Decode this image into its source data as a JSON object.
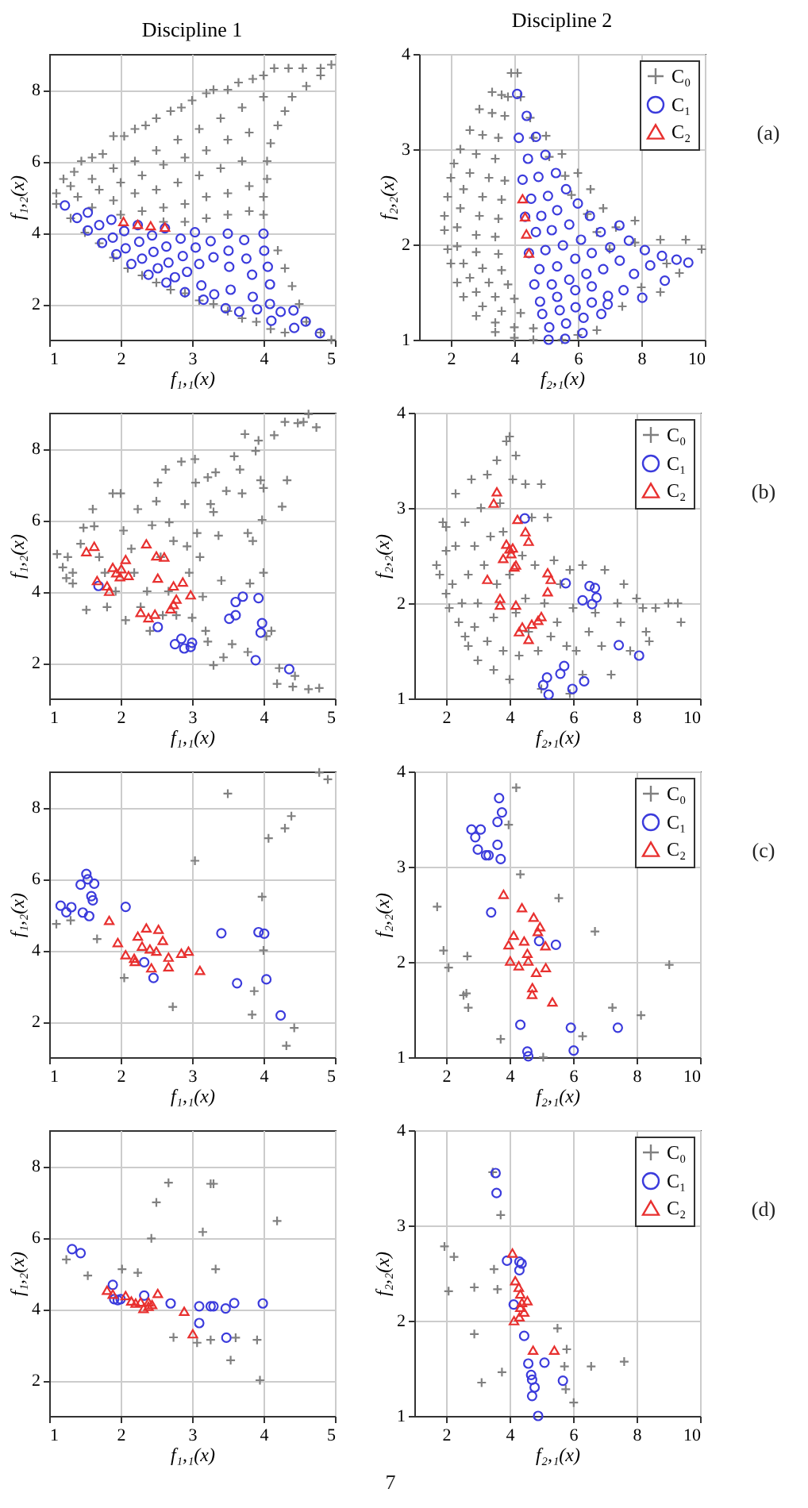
{
  "chart_data": [
    {
      "type": "scatter",
      "title": "Discipline 1",
      "xlabel": "f₁,₁(x)",
      "ylabel": "f₁,₂(x)",
      "xlim": [
        1,
        5
      ],
      "ylim": [
        1,
        9
      ],
      "xticks": [
        1,
        2,
        3,
        4,
        5
      ],
      "yticks": [
        2,
        4,
        6,
        8
      ],
      "grid": true,
      "series": [
        {
          "color": "#808080",
          "marker": "cross",
          "x": [
            1.1,
            1.2,
            1.35,
            1.45,
            1.6,
            1.75,
            1.9,
            2.05,
            2.2,
            2.35,
            2.5,
            2.7,
            2.85,
            3.0,
            3.2,
            3.3,
            3.5,
            3.65,
            3.85,
            4.0,
            4.15,
            4.35,
            4.55,
            4.8,
            4.95,
            4.8,
            4.6,
            4.4,
            4.3,
            4.2,
            4.1,
            4.05,
            4.05,
            4.0,
            4.0,
            4.2,
            4.3,
            4.4,
            4.5,
            4.6,
            4.8,
            4.95,
            1.3,
            1.6,
            1.9,
            2.2,
            2.5,
            2.8,
            3.1,
            3.4,
            3.7,
            4.0,
            1.4,
            1.7,
            2.0,
            2.3,
            2.6,
            2.9,
            3.2,
            3.5,
            3.8,
            1.6,
            1.9,
            2.2,
            2.5,
            2.8,
            3.1,
            3.4,
            3.7,
            2.0,
            2.3,
            2.6,
            2.9,
            3.2,
            3.5,
            3.8,
            2.6,
            2.9,
            3.2,
            3.5,
            3.8,
            1.1,
            1.3,
            1.5,
            1.7,
            1.9,
            2.1,
            2.3,
            2.5,
            2.7,
            2.9,
            3.1,
            3.3,
            3.5,
            3.7,
            3.9,
            4.1,
            4.3
          ],
          "values": [
            5.1,
            5.5,
            5.7,
            6.0,
            6.1,
            6.2,
            6.7,
            6.7,
            6.9,
            7.0,
            7.2,
            7.4,
            7.5,
            7.7,
            7.9,
            8.0,
            8.0,
            8.2,
            8.3,
            8.4,
            8.6,
            8.6,
            8.6,
            8.6,
            8.7,
            8.4,
            8.1,
            7.8,
            7.4,
            7.0,
            6.5,
            6.0,
            5.5,
            5.0,
            4.5,
            3.5,
            3.0,
            2.5,
            2.0,
            1.5,
            1.2,
            1.0,
            5.3,
            5.5,
            5.8,
            6.0,
            6.3,
            6.6,
            6.9,
            7.2,
            7.5,
            7.8,
            5.0,
            5.2,
            5.4,
            5.6,
            5.9,
            6.1,
            6.3,
            6.6,
            6.8,
            4.7,
            4.9,
            5.1,
            5.2,
            5.4,
            5.6,
            5.8,
            6.0,
            4.5,
            4.6,
            4.7,
            4.8,
            5.0,
            5.1,
            5.3,
            4.3,
            4.3,
            4.4,
            4.5,
            4.6,
            4.8,
            4.4,
            4.0,
            3.7,
            3.3,
            3.0,
            2.8,
            2.6,
            2.4,
            2.3,
            2.1,
            2.0,
            1.8,
            1.6,
            1.5,
            1.3,
            1.2
          ]
        },
        {
          "color": "#3b3bdc",
          "marker": "circle",
          "x": [
            1.22,
            1.39,
            1.54,
            1.54,
            1.7,
            1.74,
            1.87,
            1.89,
            1.94,
            2.05,
            2.07,
            2.15,
            2.24,
            2.26,
            2.3,
            2.39,
            2.44,
            2.46,
            2.52,
            2.62,
            2.64,
            2.67,
            2.64,
            2.76,
            2.84,
            2.87,
            2.9,
            2.93,
            3.04,
            3.05,
            3.1,
            3.13,
            3.16,
            3.26,
            3.3,
            3.31,
            3.5,
            3.51,
            3.52,
            3.54,
            3.47,
            3.66,
            3.73,
            3.76,
            3.84,
            3.85,
            3.91,
            4.0,
            4.01,
            4.06,
            4.09,
            4.09,
            4.11,
            4.24,
            4.42,
            4.43,
            4.59,
            4.79
          ],
          "values": [
            4.76,
            4.41,
            4.56,
            4.06,
            4.21,
            3.71,
            4.36,
            3.86,
            3.39,
            4.04,
            3.56,
            3.12,
            4.21,
            3.74,
            3.27,
            2.82,
            3.92,
            3.46,
            3.0,
            4.12,
            3.61,
            3.16,
            2.6,
            2.75,
            3.83,
            3.34,
            2.33,
            2.9,
            4.01,
            3.58,
            3.12,
            2.52,
            2.12,
            3.76,
            3.31,
            2.27,
            3.97,
            3.49,
            3.04,
            2.4,
            1.88,
            1.78,
            3.79,
            3.27,
            2.82,
            2.2,
            1.85,
            3.97,
            3.49,
            3.04,
            2.55,
            2.0,
            1.53,
            1.78,
            1.82,
            1.33,
            1.51,
            1.18
          ]
        },
        {
          "color": "#e8302f",
          "marker": "triangle",
          "x": [
            2.04,
            2.24,
            2.42,
            2.62
          ],
          "values": [
            4.31,
            4.23,
            4.19,
            4.15
          ]
        }
      ]
    },
    {
      "type": "scatter",
      "title": "Discipline 2",
      "xlabel": "f₂,₁(x)",
      "ylabel": "f₂,₂(x)",
      "xlim": [
        1,
        10
      ],
      "ylim": [
        1,
        4
      ],
      "xticks": [
        2,
        4,
        6,
        8,
        10
      ],
      "yticks": [
        1,
        2,
        3,
        4
      ],
      "grid": true,
      "legend": "top right",
      "annotations": [
        "(a)"
      ],
      "series": [
        {
          "name": "C₀",
          "color": "#808080",
          "marker": "cross",
          "x": [
            3.9,
            4.1,
            3.3,
            3.6,
            3.8,
            4.2,
            2.9,
            3.3,
            3.7,
            4.5,
            2.6,
            3.0,
            3.5,
            4.6,
            5.0,
            2.3,
            2.8,
            3.4,
            5.1,
            5.5,
            2.1,
            2.6,
            3.2,
            3.7,
            5.6,
            6.0,
            2.0,
            2.4,
            3.0,
            3.6,
            5.8,
            6.4,
            1.9,
            2.3,
            2.9,
            3.5,
            6.3,
            6.8,
            1.8,
            2.2,
            2.8,
            3.4,
            6.6,
            7.2,
            7.8,
            1.8,
            2.2,
            2.8,
            3.5,
            7.0,
            7.8,
            8.6,
            9.4,
            9.9,
            1.9,
            2.4,
            3.0,
            3.6,
            8.8,
            9.2,
            2.0,
            2.6,
            3.2,
            3.8,
            8.0,
            8.6,
            2.2,
            2.8,
            3.4,
            4.0,
            7.4,
            2.4,
            3.0,
            3.6,
            4.2,
            2.8,
            3.4,
            4.0,
            4.6,
            6.6,
            3.4,
            4.0,
            4.6,
            5.5,
            6.0
          ],
          "values": [
            3.8,
            3.8,
            3.6,
            3.57,
            3.55,
            3.55,
            3.42,
            3.38,
            3.35,
            3.33,
            3.2,
            3.15,
            3.12,
            3.12,
            3.14,
            3.0,
            2.95,
            2.9,
            2.92,
            2.95,
            2.85,
            2.75,
            2.7,
            2.67,
            2.72,
            2.75,
            2.7,
            2.58,
            2.5,
            2.47,
            2.52,
            2.58,
            2.5,
            2.38,
            2.3,
            2.27,
            2.32,
            2.38,
            2.3,
            2.18,
            2.1,
            2.08,
            2.13,
            2.18,
            2.25,
            2.15,
            1.98,
            1.92,
            1.9,
            1.95,
            2.02,
            2.05,
            2.05,
            1.95,
            1.95,
            1.8,
            1.75,
            1.73,
            1.8,
            1.7,
            1.8,
            1.65,
            1.6,
            1.58,
            1.55,
            1.5,
            1.6,
            1.5,
            1.45,
            1.43,
            1.35,
            1.45,
            1.35,
            1.3,
            1.28,
            1.25,
            1.18,
            1.13,
            1.12,
            1.1,
            1.08,
            1.02,
            1.0,
            1.0,
            1.05
          ]
        },
        {
          "name": "C₁",
          "color": "#3b3bdc",
          "marker": "circle",
          "x": [
            4.09,
            4.39,
            4.14,
            4.68,
            4.43,
            4.98,
            4.26,
            4.76,
            5.31,
            4.53,
            5.06,
            5.63,
            4.34,
            4.85,
            5.35,
            6.0,
            4.68,
            5.18,
            5.73,
            6.38,
            4.46,
            4.98,
            5.53,
            6.1,
            6.72,
            7.31,
            4.79,
            5.35,
            5.92,
            6.44,
            7.02,
            7.61,
            8.11,
            8.65,
            9.11,
            9.48,
            8.28,
            8.74,
            8.03,
            4.63,
            5.18,
            5.73,
            6.27,
            6.8,
            7.32,
            7.77,
            7.44,
            6.94,
            4.81,
            5.35,
            5.92,
            6.44,
            4.88,
            5.43,
            5.93,
            6.44,
            6.95,
            5.1,
            5.63,
            6.18,
            6.74,
            5.08,
            5.6,
            6.15
          ],
          "values": [
            3.58,
            3.35,
            3.12,
            3.13,
            2.9,
            2.94,
            2.68,
            2.71,
            2.75,
            2.48,
            2.51,
            2.58,
            2.29,
            2.3,
            2.36,
            2.43,
            2.13,
            2.15,
            2.21,
            2.3,
            1.91,
            1.94,
            1.99,
            2.05,
            2.13,
            2.2,
            1.74,
            1.77,
            1.85,
            1.91,
            1.97,
            2.04,
            1.94,
            1.88,
            1.84,
            1.81,
            1.78,
            1.62,
            1.44,
            1.58,
            1.58,
            1.63,
            1.69,
            1.74,
            1.83,
            1.69,
            1.52,
            1.37,
            1.4,
            1.45,
            1.52,
            1.56,
            1.27,
            1.31,
            1.34,
            1.39,
            1.46,
            1.13,
            1.17,
            1.23,
            1.27,
            1.0,
            1.01,
            1.07
          ]
        },
        {
          "name": "C₂",
          "color": "#e8302f",
          "marker": "triangle",
          "x": [
            4.26,
            4.34,
            4.38,
            4.46
          ],
          "values": [
            2.48,
            2.29,
            2.11,
            1.91
          ]
        }
      ]
    },
    {
      "type": "scatter",
      "xlabel": "f₁,₁(x)",
      "ylabel": "f₁,₂(x)",
      "xlim": [
        1,
        5
      ],
      "ylim": [
        1,
        9
      ],
      "xticks": [
        1,
        2,
        3,
        4,
        5
      ],
      "yticks": [
        2,
        4,
        6,
        8
      ],
      "grid": true,
      "series": [
        {
          "color": "#808080",
          "marker": "cross",
          "x": [
            1.11,
            1.19,
            1.26,
            1.33,
            1.44,
            1.48,
            1.63,
            1.61,
            1.7,
            1.78,
            1.81,
            1.89,
            2.0,
            2.04,
            1.93,
            2.07,
            2.15,
            2.19,
            2.24,
            2.28,
            2.37,
            2.41,
            2.44,
            2.5,
            2.52,
            2.56,
            2.59,
            2.63,
            2.67,
            2.68,
            2.74,
            2.78,
            2.85,
            2.9,
            2.93,
            2.96,
            3.0,
            3.04,
            3.05,
            3.07,
            3.11,
            3.15,
            3.19,
            3.22,
            3.26,
            3.3,
            3.33,
            3.37,
            3.41,
            3.3,
            3.44,
            3.48,
            3.56,
            3.59,
            3.67,
            3.7,
            3.74,
            3.78,
            3.81,
            3.85,
            3.89,
            3.93,
            3.96,
            4.0,
            3.98,
            4.0,
            4.04,
            4.11,
            4.15,
            4.19,
            4.26,
            4.33,
            4.3,
            4.41,
            4.44,
            4.48,
            4.56,
            4.63,
            4.74,
            4.63,
            4.78,
            4.22,
            3.78,
            3.22,
            1.33,
            1.24,
            1.52
          ],
          "values": [
            5.04,
            4.67,
            4.96,
            4.52,
            5.33,
            5.78,
            5.82,
            6.3,
            4.96,
            4.52,
            3.56,
            6.74,
            6.74,
            5.7,
            4.0,
            3.19,
            5.19,
            4.52,
            6.3,
            3.56,
            4.0,
            2.89,
            5.85,
            6.52,
            7.04,
            4.96,
            3.33,
            7.41,
            4.0,
            5.93,
            5.41,
            3.33,
            7.63,
            6.44,
            5.26,
            4.52,
            3.26,
            7.7,
            7.04,
            5.63,
            4.96,
            3.85,
            2.89,
            7.19,
            6.44,
            6.22,
            7.33,
            5.56,
            4.3,
            1.93,
            2.15,
            6.81,
            2.52,
            7.78,
            7.41,
            6.74,
            8.4,
            5.63,
            4.22,
            5.41,
            7.93,
            8.22,
            7.11,
            6.89,
            6.0,
            4.52,
            2.74,
            2.89,
            8.37,
            1.41,
            6.37,
            7.11,
            8.74,
            1.33,
            1.63,
            8.71,
            8.74,
            8.96,
            8.59,
            1.26,
            1.29,
            1.85,
            2.3,
            2.59,
            4.22,
            4.37,
            3.48
          ]
        },
        {
          "color": "#3b3bdc",
          "marker": "circle",
          "x": [
            1.69,
            2.52,
            2.76,
            2.85,
            2.89,
            2.98,
            3.0,
            3.52,
            3.61,
            3.61,
            3.71,
            3.93,
            3.98,
            3.96,
            3.89,
            4.36
          ],
          "values": [
            4.15,
            3.0,
            2.52,
            2.67,
            2.4,
            2.44,
            2.56,
            3.23,
            3.33,
            3.7,
            3.85,
            3.81,
            3.11,
            2.84,
            2.07,
            1.82
          ]
        },
        {
          "color": "#e8302f",
          "marker": "triangle",
          "x": [
            1.52,
            1.63,
            1.67,
            1.81,
            1.84,
            1.89,
            1.94,
            1.99,
            2.01,
            2.07,
            2.11,
            2.36,
            2.28,
            2.39,
            2.48,
            2.5,
            2.61,
            2.52,
            2.74,
            2.78,
            2.87,
            2.7,
            2.98,
            2.74
          ],
          "values": [
            5.11,
            5.26,
            4.3,
            4.15,
            4.0,
            4.67,
            4.52,
            4.41,
            4.63,
            4.89,
            4.44,
            5.33,
            3.41,
            3.26,
            3.36,
            4.99,
            4.96,
            4.37,
            4.15,
            3.78,
            4.26,
            3.51,
            3.9,
            3.63
          ]
        }
      ]
    },
    {
      "type": "scatter",
      "xlabel": "f₂,₁(x)",
      "ylabel": "f₂,₂(x)",
      "xlim": [
        1,
        10
      ],
      "ylim": [
        1,
        4
      ],
      "xticks": [
        2,
        4,
        6,
        8,
        10
      ],
      "yticks": [
        1,
        2,
        3,
        4
      ],
      "grid": true,
      "legend": "top right",
      "annotations": [
        "(b)"
      ],
      "series": [
        {
          "name": "C₀",
          "color": "#808080",
          "marker": "cross",
          "x": [
            1.7,
            1.8,
            1.9,
            2.0,
            2.0,
            2.0,
            2.1,
            2.2,
            2.3,
            2.3,
            2.4,
            2.5,
            2.6,
            2.6,
            2.7,
            2.7,
            2.8,
            2.9,
            2.9,
            3.0,
            3.0,
            3.1,
            3.2,
            3.3,
            3.3,
            3.4,
            3.5,
            3.5,
            3.6,
            3.6,
            3.7,
            3.8,
            3.8,
            3.9,
            4.0,
            4.0,
            4.0,
            4.1,
            4.2,
            4.2,
            4.3,
            4.4,
            4.5,
            4.5,
            4.6,
            4.7,
            4.8,
            4.9,
            5.0,
            5.0,
            5.1,
            5.2,
            5.3,
            5.4,
            5.5,
            5.6,
            5.8,
            5.9,
            6.0,
            6.1,
            6.3,
            6.5,
            6.7,
            6.9,
            7.0,
            7.2,
            7.4,
            7.5,
            7.6,
            7.8,
            8.0,
            8.2,
            8.3,
            8.4,
            8.6,
            9.0,
            9.3,
            9.4,
            5.9,
            6.3
          ],
          "values": [
            2.4,
            2.3,
            2.85,
            2.8,
            2.55,
            2.1,
            1.95,
            2.2,
            3.15,
            2.6,
            1.8,
            2.0,
            2.85,
            1.65,
            2.3,
            1.55,
            3.3,
            2.6,
            1.75,
            2.0,
            1.4,
            3.0,
            2.4,
            1.6,
            3.35,
            2.7,
            1.85,
            1.3,
            3.5,
            2.2,
            3.05,
            1.5,
            2.75,
            3.7,
            3.75,
            2.3,
            1.2,
            3.3,
            3.55,
            1.9,
            1.45,
            2.5,
            3.25,
            2.05,
            1.7,
            2.9,
            2.4,
            1.5,
            3.25,
            1.1,
            2.0,
            2.9,
            1.65,
            2.45,
            1.8,
            2.2,
            1.55,
            2.35,
            1.95,
            1.5,
            2.4,
            1.7,
            1.9,
            1.55,
            2.35,
            1.25,
            2.0,
            1.8,
            2.2,
            1.5,
            2.05,
            1.95,
            1.7,
            1.6,
            1.95,
            2.0,
            2.0,
            1.8,
            1.05,
            1.25
          ]
        },
        {
          "name": "C₁",
          "color": "#3b3bdc",
          "marker": "circle",
          "x": [
            5.77,
            6.3,
            6.52,
            6.69,
            6.6,
            6.74,
            4.48,
            7.44,
            8.08,
            5.06,
            5.18,
            5.23,
            5.6,
            5.72,
            5.98,
            6.35
          ],
          "values": [
            2.21,
            2.03,
            2.18,
            2.16,
            1.99,
            2.06,
            2.89,
            1.56,
            1.45,
            1.14,
            1.22,
            1.04,
            1.26,
            1.34,
            1.1,
            1.18
          ]
        },
        {
          "name": "C₂",
          "color": "#e8302f",
          "marker": "triangle",
          "x": [
            3.6,
            3.5,
            4.25,
            4.5,
            4.6,
            3.9,
            4.0,
            4.05,
            4.1,
            3.8,
            4.2,
            4.15,
            3.3,
            3.7,
            3.7,
            4.2,
            5.2,
            5.3,
            5.2,
            4.4,
            4.3,
            4.7,
            4.9,
            5.0,
            4.6
          ],
          "values": [
            3.17,
            3.05,
            2.88,
            2.75,
            2.65,
            2.62,
            2.57,
            2.52,
            2.58,
            2.47,
            2.4,
            2.38,
            2.25,
            2.05,
            1.98,
            1.98,
            2.32,
            2.25,
            2.12,
            1.75,
            1.7,
            1.78,
            1.82,
            1.86,
            1.62
          ]
        }
      ]
    },
    {
      "type": "scatter",
      "xlabel": "f₁,₁(x)",
      "ylabel": "f₁,₂(x)",
      "xlim": [
        1,
        5
      ],
      "ylim": [
        1,
        9
      ],
      "xticks": [
        1,
        2,
        3,
        4,
        5
      ],
      "yticks": [
        2,
        4,
        6,
        8
      ],
      "grid": true,
      "series": [
        {
          "color": "#808080",
          "marker": "cross",
          "x": [
            1.1,
            1.3,
            1.67,
            2.05,
            2.73,
            3.04,
            3.5,
            3.98,
            4.0,
            3.87,
            3.84,
            4.07,
            4.3,
            4.43,
            4.32,
            4.39,
            4.78,
            4.9
          ],
          "values": [
            4.73,
            4.83,
            4.31,
            3.22,
            2.41,
            6.5,
            8.38,
            5.49,
            3.99,
            2.85,
            2.19,
            7.13,
            7.41,
            1.82,
            1.32,
            7.75,
            8.97,
            8.78
          ]
        },
        {
          "color": "#3b3bdc",
          "marker": "circle",
          "x": [
            1.16,
            1.24,
            1.31,
            1.44,
            1.47,
            1.52,
            1.54,
            1.56,
            1.59,
            1.61,
            1.63,
            2.07,
            2.33,
            2.46,
            3.41,
            3.63,
            3.93,
            4.01,
            4.04,
            4.24
          ],
          "values": [
            5.24,
            5.06,
            5.2,
            5.83,
            5.05,
            6.13,
            5.98,
            4.95,
            5.51,
            5.39,
            5.86,
            5.21,
            3.66,
            3.22,
            4.47,
            3.07,
            4.5,
            4.46,
            3.18,
            2.17
          ]
        },
        {
          "color": "#e8302f",
          "marker": "triangle",
          "x": [
            1.84,
            1.96,
            2.07,
            2.19,
            2.24,
            2.2,
            2.3,
            2.36,
            2.41,
            2.43,
            2.5,
            2.53,
            2.59,
            2.67,
            2.67,
            2.85,
            2.95,
            3.11
          ],
          "values": [
            4.83,
            4.21,
            3.87,
            3.77,
            4.39,
            3.68,
            4.11,
            4.62,
            4.03,
            3.5,
            3.97,
            4.58,
            4.27,
            3.8,
            3.53,
            3.91,
            3.97,
            3.43
          ]
        }
      ]
    },
    {
      "type": "scatter",
      "xlabel": "f₂,₁(x)",
      "ylabel": "f₂,₂(x)",
      "xlim": [
        1,
        10
      ],
      "ylim": [
        1,
        4
      ],
      "xticks": [
        2,
        4,
        6,
        8,
        10
      ],
      "yticks": [
        1,
        2,
        3,
        4
      ],
      "grid": true,
      "legend": "top right",
      "annotations": [
        "(c)"
      ],
      "series": [
        {
          "name": "C₀",
          "color": "#808080",
          "marker": "cross",
          "x": [
            1.72,
            1.92,
            2.08,
            2.67,
            2.55,
            2.64,
            2.7,
            3.72,
            4.21,
            3.97,
            4.34,
            5.55,
            6.69,
            5.06,
            6.3,
            7.24,
            8.14,
            9.03
          ],
          "values": [
            2.58,
            2.12,
            1.94,
            2.06,
            1.65,
            1.67,
            1.52,
            1.19,
            3.83,
            3.44,
            2.92,
            2.67,
            2.32,
            1.0,
            1.22,
            1.52,
            1.44,
            1.97
          ]
        },
        {
          "name": "C₁",
          "color": "#3b3bdc",
          "marker": "circle",
          "x": [
            2.8,
            3.09,
            2.92,
            3.0,
            3.26,
            3.34,
            3.67,
            3.76,
            3.62,
            3.62,
            3.72,
            3.42,
            4.34,
            4.56,
            4.59,
            4.93,
            5.46,
            5.93,
            6.02,
            7.41
          ],
          "values": [
            3.39,
            3.39,
            3.31,
            3.18,
            3.12,
            3.12,
            3.72,
            3.57,
            3.47,
            3.23,
            3.08,
            2.52,
            1.34,
            1.06,
            1.01,
            2.22,
            2.18,
            1.31,
            1.07,
            1.31
          ]
        },
        {
          "name": "C₂",
          "color": "#e8302f",
          "marker": "triangle",
          "x": [
            3.81,
            4.39,
            4.13,
            3.97,
            4.46,
            4.76,
            4.96,
            4.89,
            5.13,
            4.02,
            4.29,
            4.56,
            4.59,
            4.84,
            5.14,
            4.72,
            4.71,
            5.35
          ],
          "values": [
            2.71,
            2.57,
            2.28,
            2.18,
            2.22,
            2.47,
            2.37,
            2.32,
            2.17,
            2.01,
            1.96,
            2.09,
            2.01,
            1.89,
            1.94,
            1.73,
            1.66,
            1.58
          ]
        }
      ]
    },
    {
      "type": "scatter",
      "xlabel": "f₁,₁(x)",
      "ylabel": "f₁,₂(x)",
      "xlim": [
        1,
        5
      ],
      "ylim": [
        1,
        9
      ],
      "xticks": [
        1,
        2,
        3,
        4,
        5
      ],
      "yticks": [
        2,
        4,
        6,
        8
      ],
      "grid": true,
      "series": [
        {
          "color": "#808080",
          "marker": "cross",
          "x": [
            1.24,
            1.54,
            2.02,
            2.24,
            2.43,
            2.5,
            2.67,
            2.74,
            3.15,
            3.26,
            3.3,
            3.33,
            3.07,
            3.26,
            3.54,
            3.61,
            3.91,
            3.95,
            4.19
          ],
          "values": [
            5.38,
            4.93,
            5.11,
            5.01,
            5.97,
            6.98,
            7.53,
            3.2,
            6.15,
            7.5,
            7.5,
            5.11,
            3.05,
            3.13,
            2.56,
            3.19,
            3.13,
            2.0,
            6.46
          ]
        },
        {
          "color": "#3b3bdc",
          "marker": "circle",
          "x": [
            1.32,
            1.44,
            1.89,
            1.91,
            1.96,
            2.0,
            2.33,
            2.7,
            3.1,
            3.1,
            3.26,
            3.3,
            3.47,
            3.48,
            3.59,
            3.99
          ],
          "values": [
            5.67,
            5.56,
            4.67,
            4.27,
            4.24,
            4.27,
            4.37,
            4.15,
            4.07,
            3.6,
            4.07,
            4.07,
            4.01,
            3.19,
            4.16,
            4.15
          ]
        },
        {
          "color": "#e8302f",
          "marker": "triangle",
          "x": [
            1.81,
            1.89,
            2.07,
            2.15,
            2.21,
            2.28,
            2.32,
            2.39,
            2.44,
            2.52,
            2.89,
            3.01,
            2.39
          ],
          "values": [
            4.52,
            4.41,
            4.37,
            4.22,
            4.16,
            4.19,
            4.01,
            4.07,
            4.12,
            4.43,
            3.93,
            3.3,
            4.19
          ]
        }
      ]
    },
    {
      "type": "scatter",
      "xlabel": "f₂,₁(x)",
      "ylabel": "f₂,₂(x)",
      "xlim": [
        1,
        10
      ],
      "ylim": [
        1,
        4
      ],
      "xticks": [
        2,
        4,
        6,
        8,
        10
      ],
      "yticks": [
        1,
        2,
        3,
        4
      ],
      "grid": true,
      "legend": "top right",
      "annotations": [
        "(d)",
        "7"
      ],
      "series": [
        {
          "name": "C₀",
          "color": "#808080",
          "marker": "cross",
          "x": [
            1.95,
            2.25,
            2.08,
            2.89,
            2.89,
            3.12,
            3.51,
            3.62,
            3.72,
            3.76,
            3.47,
            5.51,
            5.73,
            5.8,
            5.77,
            6.02,
            6.57,
            7.61
          ],
          "values": [
            2.78,
            2.67,
            2.31,
            2.35,
            1.86,
            1.35,
            2.54,
            2.33,
            3.11,
            1.46,
            3.56,
            1.92,
            1.52,
            1.7,
            1.28,
            1.14,
            1.52,
            1.57
          ]
        },
        {
          "name": "C₁",
          "color": "#3b3bdc",
          "marker": "circle",
          "x": [
            3.56,
            3.59,
            3.92,
            4.31,
            4.38,
            4.31,
            4.13,
            4.46,
            4.59,
            4.68,
            4.71,
            4.79,
            4.71,
            5.1,
            5.68,
            4.9
          ],
          "values": [
            3.55,
            3.34,
            2.63,
            2.62,
            2.6,
            2.53,
            2.17,
            1.84,
            1.55,
            1.43,
            1.38,
            1.3,
            1.21,
            1.56,
            1.37,
            1.0
          ]
        },
        {
          "name": "C₂",
          "color": "#e8302f",
          "marker": "triangle",
          "x": [
            4.09,
            4.18,
            4.29,
            4.34,
            4.39,
            4.34,
            4.46,
            4.56,
            4.31,
            4.14,
            4.74,
            5.41
          ],
          "values": [
            2.71,
            2.42,
            2.35,
            2.28,
            2.19,
            2.14,
            2.09,
            2.21,
            2.04,
            2.0,
            1.69,
            1.69
          ]
        }
      ]
    }
  ]
}
